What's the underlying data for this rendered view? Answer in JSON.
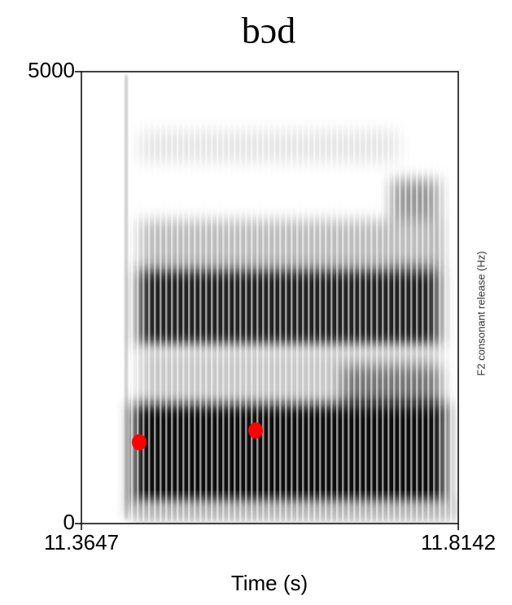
{
  "chart_data": {
    "type": "scatter",
    "title": "bɔd",
    "x_label": "Time (s)",
    "annotation": "F2 consonant release (Hz)",
    "x": [
      11.4336,
      11.5725
    ],
    "values": [
      900,
      1030
    ],
    "color": "#ff0000",
    "xlim": [
      11.3647,
      11.8142
    ],
    "xticks": [
      11.3647,
      11.8142
    ],
    "ylim": [
      0,
      5000
    ],
    "yticks": [
      0,
      5000
    ]
  }
}
